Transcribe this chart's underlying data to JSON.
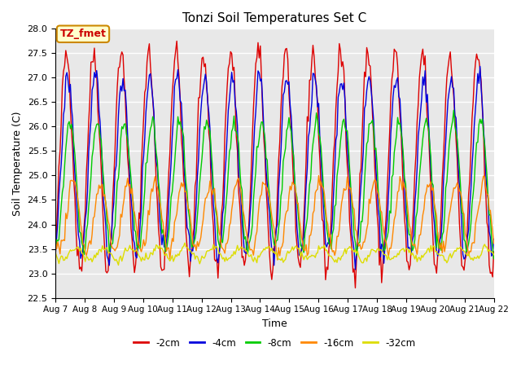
{
  "title": "Tonzi Soil Temperatures Set C",
  "xlabel": "Time",
  "ylabel": "Soil Temperature (C)",
  "ylim": [
    22.5,
    28.0
  ],
  "xlim": [
    0,
    360
  ],
  "background_color": "#e8e8e8",
  "plot_bg_color": "#e8e8e8",
  "series": [
    "-2cm",
    "-4cm",
    "-8cm",
    "-16cm",
    "-32cm"
  ],
  "colors": [
    "#dd0000",
    "#0000dd",
    "#00cc00",
    "#ff8800",
    "#dddd00"
  ],
  "annotation_text": "TZ_fmet",
  "annotation_bg": "#ffffcc",
  "annotation_border": "#cc8800",
  "annotation_text_color": "#cc0000",
  "x_tick_labels": [
    "Aug 7",
    "Aug 8",
    "Aug 9",
    "Aug 10",
    "Aug 11",
    "Aug 12",
    "Aug 13",
    "Aug 14",
    "Aug 15",
    "Aug 16",
    "Aug 17",
    "Aug 18",
    "Aug 19",
    "Aug 20",
    "Aug 21",
    "Aug 22"
  ],
  "x_tick_positions": [
    0,
    24,
    48,
    72,
    96,
    120,
    144,
    168,
    192,
    216,
    240,
    264,
    288,
    312,
    336,
    360
  ]
}
